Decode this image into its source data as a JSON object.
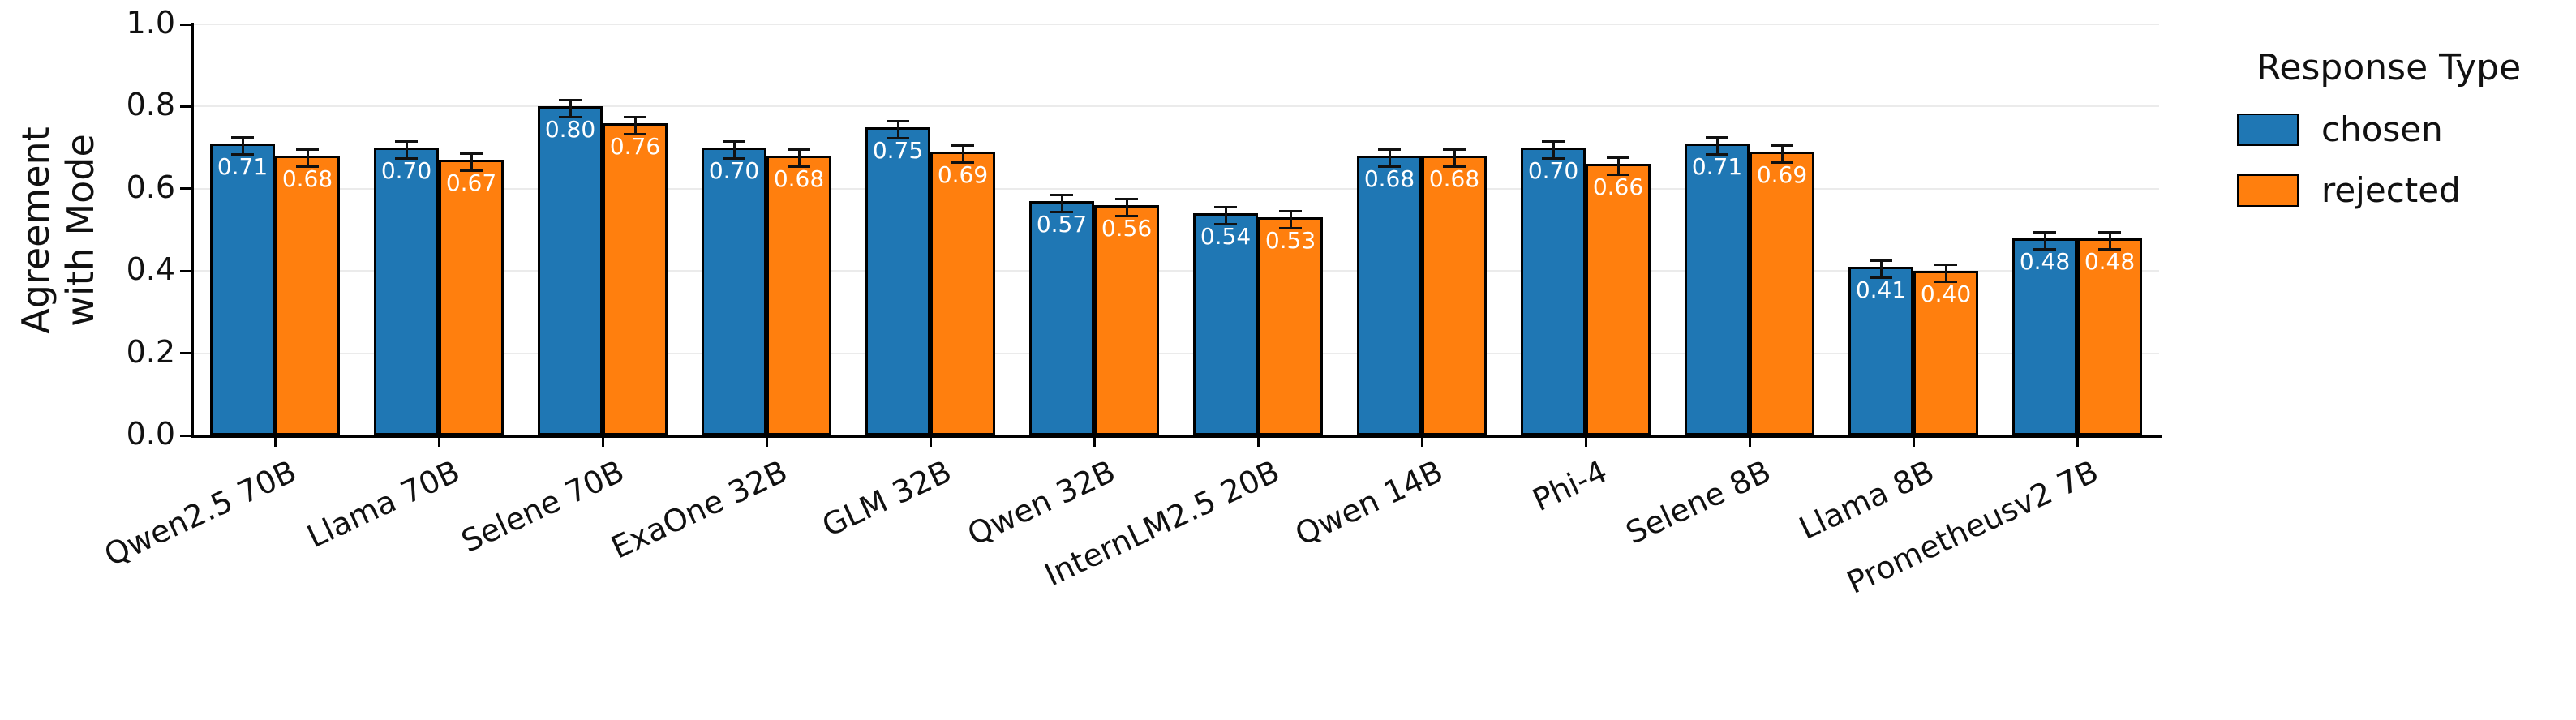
{
  "chart_data": {
    "type": "bar",
    "title": "",
    "ylabel": "Agreement\nwith Mode",
    "xlabel": "",
    "legend_title": "Response Type",
    "legend_position": "right",
    "grid": true,
    "error_bars": true,
    "ylim": [
      0.0,
      1.0
    ],
    "yticks": [
      "0.0",
      "0.2",
      "0.4",
      "0.6",
      "0.8",
      "1.0"
    ],
    "categories": [
      "Qwen2.5 70B",
      "Llama 70B",
      "Selene 70B",
      "ExaOne 32B",
      "GLM 32B",
      "Qwen 32B",
      "InternLM2.5 20B",
      "Qwen 14B",
      "Phi-4",
      "Selene 8B",
      "Llama 8B",
      "Prometheusv2 7B"
    ],
    "series": [
      {
        "name": "chosen",
        "color": "#1f77b4",
        "values": [
          0.71,
          0.7,
          0.8,
          0.7,
          0.75,
          0.57,
          0.54,
          0.68,
          0.7,
          0.71,
          0.41,
          0.48
        ]
      },
      {
        "name": "rejected",
        "color": "#ff7f0e",
        "values": [
          0.68,
          0.67,
          0.76,
          0.68,
          0.69,
          0.56,
          0.53,
          0.68,
          0.66,
          0.69,
          0.4,
          0.48
        ]
      }
    ]
  }
}
